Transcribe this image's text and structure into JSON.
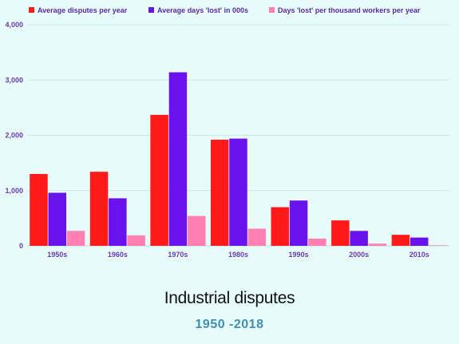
{
  "chart_data": {
    "type": "bar",
    "title": "Industrial disputes",
    "subtitle": "1950 -2018",
    "categories": [
      "1950s",
      "1960s",
      "1970s",
      "1980s",
      "1990s",
      "2000s",
      "2010s"
    ],
    "series": [
      {
        "name": "Average disputes per year",
        "color": "#ff1a1a",
        "values": [
          1300,
          1340,
          2370,
          1920,
          700,
          460,
          200
        ]
      },
      {
        "name": "Average days 'lost' in 000s",
        "color": "#6a12ee",
        "values": [
          960,
          860,
          3140,
          1940,
          820,
          270,
          150
        ]
      },
      {
        "name": "Days 'lost' per thousand workers per year",
        "color": "#ff7fb3",
        "values": [
          270,
          190,
          540,
          310,
          130,
          40,
          10
        ]
      }
    ],
    "ylim": [
      0,
      4000
    ],
    "yticks": [
      0,
      1000,
      2000,
      3000,
      4000
    ],
    "ytick_labels": [
      "0",
      "1,000",
      "2,000",
      "3,000",
      "4,000"
    ],
    "grid": true,
    "legend_position": "top-left"
  }
}
